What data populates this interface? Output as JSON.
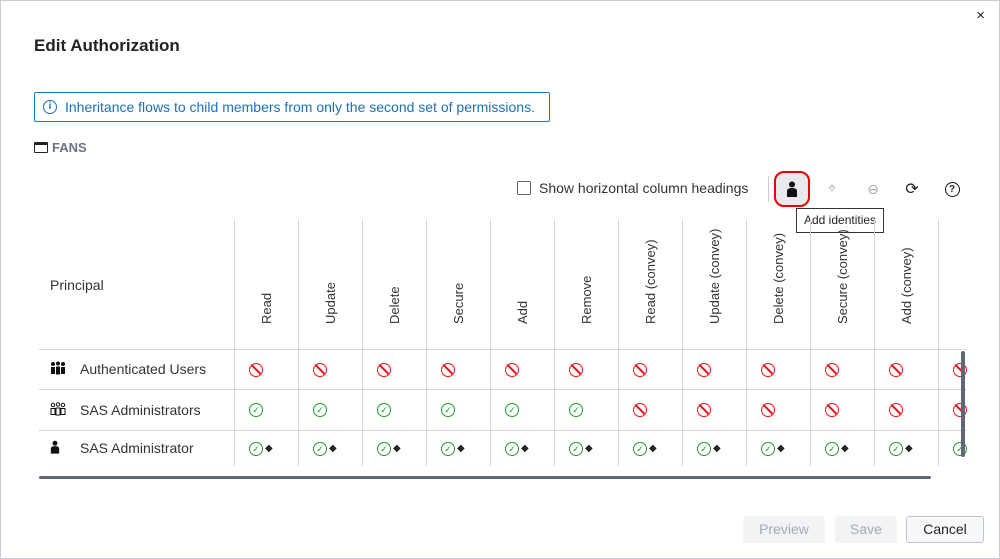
{
  "dialog": {
    "title": "Edit Authorization",
    "close": "×"
  },
  "info": {
    "icon": "info-icon",
    "text": "Inheritance flows to child members from only the second set of permissions."
  },
  "folder": {
    "icon": "folder-icon",
    "name": "FANS"
  },
  "toolbar": {
    "show_horizontal_label": "Show horizontal column headings",
    "show_horizontal_checked": false,
    "tooltip": "Add identities",
    "buttons": [
      "add-identities",
      "add-permissions",
      "remove",
      "refresh",
      "help"
    ]
  },
  "table": {
    "principal_header": "Principal",
    "columns": [
      "Read",
      "Update",
      "Delete",
      "Secure",
      "Add",
      "Remove",
      "Read (convey)",
      "Update (convey)",
      "Delete (convey)",
      "Secure (convey)",
      "Add (convey)",
      ""
    ],
    "rows": [
      {
        "name": "Authenticated Users",
        "icon": "group-icon",
        "cells": [
          "deny",
          "deny",
          "deny",
          "deny",
          "deny",
          "deny",
          "deny",
          "deny",
          "deny",
          "deny",
          "deny",
          "deny"
        ]
      },
      {
        "name": "SAS Administrators",
        "icon": "custom-group-icon",
        "cells": [
          "grant",
          "grant",
          "grant",
          "grant",
          "grant",
          "grant",
          "deny",
          "deny",
          "deny",
          "deny",
          "deny",
          "deny"
        ]
      },
      {
        "name": "SAS Administrator",
        "icon": "user-icon",
        "cells": [
          "grant-direct",
          "grant-direct",
          "grant-direct",
          "grant-direct",
          "grant-direct",
          "grant-direct",
          "grant-direct",
          "grant-direct",
          "grant-direct",
          "grant-direct",
          "grant-direct",
          "grant"
        ]
      }
    ]
  },
  "colors": {
    "deny": "#e5131c",
    "grant": "#1f9a2e",
    "accent": "#1f7ac4"
  },
  "footer": {
    "preview": "Preview",
    "save": "Save",
    "cancel": "Cancel"
  }
}
